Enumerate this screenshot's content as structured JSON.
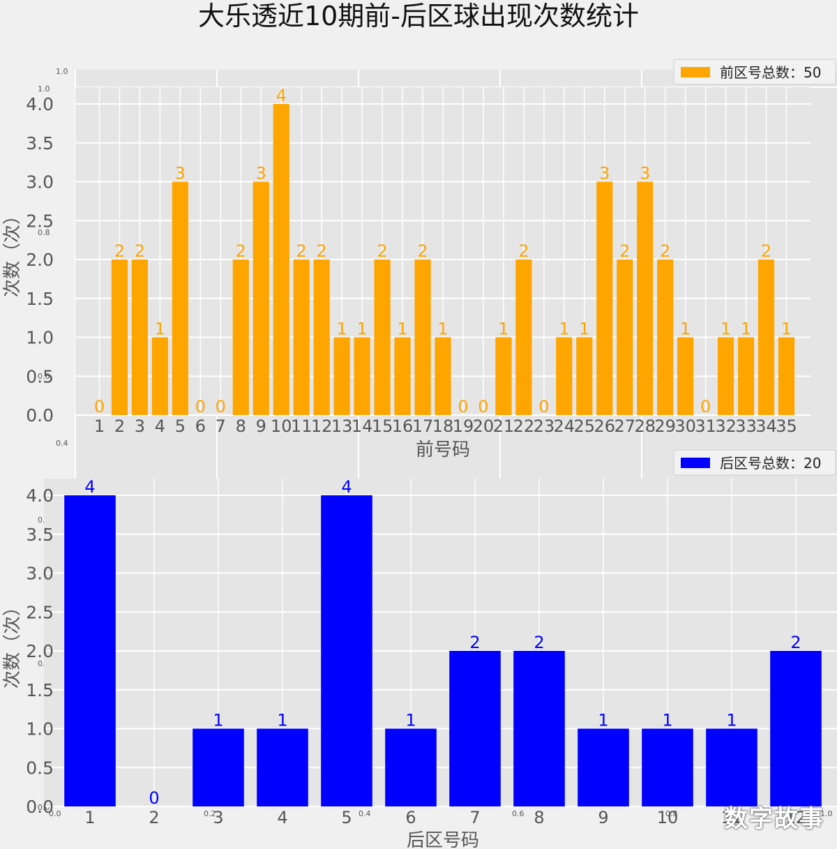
{
  "title": "大乐透近10期前-后区球出现次数统计",
  "watermark": "数字故事",
  "chart_data": [
    {
      "type": "bar",
      "color": "#ffa500",
      "xlabel": "前号码",
      "ylabel": "次数（次）",
      "ylim": [
        0,
        4
      ],
      "yticks": [
        "0.0",
        "0.5",
        "1.0",
        "1.5",
        "2.0",
        "2.5",
        "3.0",
        "3.5",
        "4.0"
      ],
      "categories": [
        "1",
        "2",
        "3",
        "4",
        "5",
        "6",
        "7",
        "8",
        "9",
        "10",
        "11",
        "12",
        "13",
        "14",
        "15",
        "16",
        "17",
        "18",
        "19",
        "20",
        "21",
        "22",
        "23",
        "24",
        "25",
        "26",
        "27",
        "28",
        "29",
        "30",
        "31",
        "32",
        "33",
        "34",
        "35"
      ],
      "values": [
        0,
        2,
        2,
        1,
        3,
        0,
        0,
        2,
        3,
        4,
        2,
        2,
        1,
        1,
        2,
        1,
        2,
        1,
        0,
        0,
        1,
        2,
        0,
        1,
        1,
        3,
        2,
        3,
        2,
        1,
        0,
        1,
        1,
        2,
        1
      ],
      "legend": "前区号总数：50",
      "legend_position": "top-right",
      "grid": true
    },
    {
      "type": "bar",
      "color": "#0000ff",
      "xlabel": "后区号码",
      "ylabel": "次数（次）",
      "ylim": [
        0,
        4
      ],
      "yticks": [
        "0.0",
        "0.5",
        "1.0",
        "1.5",
        "2.0",
        "2.5",
        "3.0",
        "3.5",
        "4.0"
      ],
      "categories": [
        "1",
        "2",
        "3",
        "4",
        "5",
        "6",
        "7",
        "8",
        "9",
        "10",
        "11",
        "12"
      ],
      "values": [
        4,
        0,
        1,
        1,
        4,
        1,
        2,
        2,
        1,
        1,
        1,
        2
      ],
      "legend": "后区号总数：20",
      "legend_position": "top-right",
      "grid": true
    }
  ],
  "ghost_ticks": {
    "top_left": [
      "1.0",
      "1.0",
      "0.8",
      "0.6",
      "0.4"
    ],
    "bottom_left": [
      "0.4",
      "0.2",
      "0.0"
    ],
    "bottom_x": [
      "0.0",
      "0.2",
      "0.4",
      "0.6",
      "0.8",
      "1.0"
    ]
  }
}
